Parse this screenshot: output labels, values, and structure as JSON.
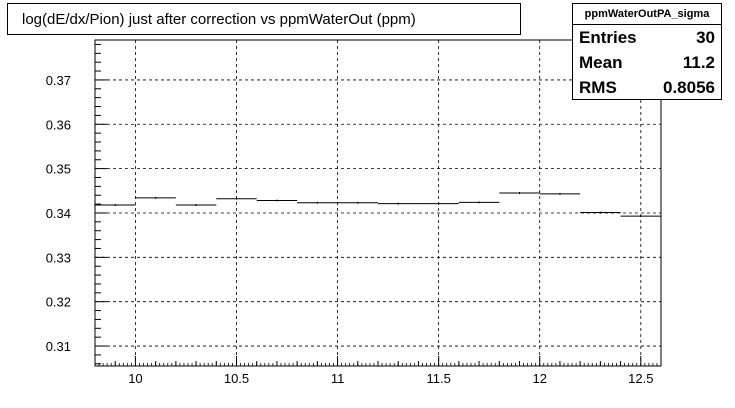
{
  "title": "log(dE/dx/Pion) just after correction vs ppmWaterOut (ppm)",
  "stats": {
    "name": "ppmWaterOutPA_sigma",
    "rows": [
      {
        "label": "Entries",
        "value": "30"
      },
      {
        "label": "Mean",
        "value": "11.2"
      },
      {
        "label": "RMS",
        "value": "0.8056"
      }
    ]
  },
  "chart_data": {
    "type": "line",
    "style": "histogram-step",
    "title": "log(dE/dx/Pion) just after correction vs ppmWaterOut (ppm)",
    "xlabel": "",
    "ylabel": "",
    "xlim": [
      9.8,
      12.6
    ],
    "ylim": [
      0.3055,
      0.379
    ],
    "grid": true,
    "x_ticks": [
      10,
      10.5,
      11,
      11.5,
      12,
      12.5
    ],
    "x_tick_labels": [
      "10",
      "10.5",
      "11",
      "11.5",
      "12",
      "12.5"
    ],
    "y_ticks": [
      0.31,
      0.32,
      0.33,
      0.34,
      0.35,
      0.36,
      0.37
    ],
    "y_tick_labels": [
      "0.31",
      "0.32",
      "0.33",
      "0.34",
      "0.35",
      "0.36",
      "0.37"
    ],
    "bin_width": 0.2,
    "series": [
      {
        "x_low": [
          9.8,
          10.0,
          10.2,
          10.4,
          10.6,
          10.8,
          11.0,
          11.2,
          11.4,
          11.6,
          11.8,
          12.0,
          12.2,
          12.4
        ],
        "values": [
          0.3418,
          0.3434,
          0.3418,
          0.3432,
          0.3428,
          0.3423,
          0.3423,
          0.3421,
          0.3421,
          0.3424,
          0.3445,
          0.3443,
          0.3401,
          0.3393
        ]
      }
    ]
  }
}
